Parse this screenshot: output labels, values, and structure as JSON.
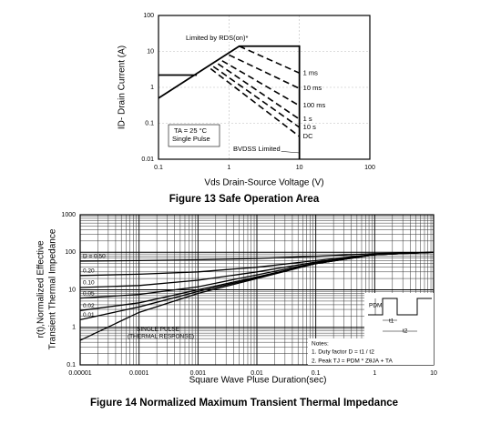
{
  "chart_data": [
    {
      "type": "line",
      "title": "Figure 13    Safe Operation Area",
      "x_label": "Vds Drain-Source Voltage (V)",
      "y_label": "ID- Drain Current (A)",
      "xlog": true,
      "ylog": true,
      "grid": true,
      "minor_grid": false,
      "xlim": [
        0.1,
        100
      ],
      "ylim": [
        0.01,
        100
      ],
      "xticks": [
        0.1,
        1,
        10,
        100
      ],
      "yticks": [
        0.01,
        0.1,
        1,
        10,
        100
      ],
      "series": [
        {
          "color": "#000000",
          "dashed": false,
          "x": [
            0.1,
            1.4,
            10,
            10
          ],
          "values": [
            0.5,
            14,
            14,
            0.01
          ]
        },
        {
          "color": "#000000",
          "dashed": false,
          "x": [
            0.1,
            0.35
          ],
          "values": [
            2.2,
            2.2
          ]
        },
        {
          "name": "1 ms",
          "color": "#000000",
          "dashed": true,
          "x": [
            1.4,
            10
          ],
          "values": [
            14,
            2.5
          ]
        },
        {
          "name": "10 ms",
          "color": "#000000",
          "dashed": true,
          "x": [
            1,
            10
          ],
          "values": [
            8,
            0.93
          ]
        },
        {
          "name": "100 ms",
          "color": "#000000",
          "dashed": true,
          "x": [
            0.8,
            10
          ],
          "values": [
            5.5,
            0.31
          ]
        },
        {
          "name": "1 s",
          "color": "#000000",
          "dashed": true,
          "x": [
            0.7,
            10
          ],
          "values": [
            4.5,
            0.13
          ]
        },
        {
          "name": "10 s",
          "color": "#000000",
          "dashed": true,
          "x": [
            0.6,
            10
          ],
          "values": [
            3.8,
            0.077
          ]
        },
        {
          "name": "DC",
          "color": "#000000",
          "dashed": true,
          "x": [
            0.55,
            10
          ],
          "values": [
            3.3,
            0.043
          ]
        }
      ],
      "annotations": [
        "Limited by RDS(on)*",
        "TA = 25 °C",
        "Single Pulse",
        "BVDSS Limited"
      ]
    },
    {
      "type": "line",
      "title": "Figure 14 Normalized Maximum Transient Thermal Impedance",
      "x_label": "Square Wave Pluse Duration(sec)",
      "y_label": [
        "r(t),Normalized Effective",
        "Transient Thermal Impedance"
      ],
      "xlog": true,
      "ylog": true,
      "grid": true,
      "minor_grid": true,
      "xlim": [
        1e-05,
        10
      ],
      "ylim": [
        0.1,
        1000
      ],
      "xticks": [
        1e-05,
        0.0001,
        0.001,
        0.01,
        0.1,
        1,
        10
      ],
      "yticks": [
        0.1,
        1,
        10,
        100,
        1000
      ],
      "x": [
        1e-05,
        0.0001,
        0.001,
        0.01,
        0.1,
        1,
        10
      ],
      "series": [
        {
          "name": "D = 0.50",
          "color": "#000000",
          "values": [
            58,
            60,
            63,
            68,
            78,
            92,
            100
          ]
        },
        {
          "name": "0.20",
          "color": "#000000",
          "values": [
            24,
            26,
            30,
            40,
            60,
            88,
            100
          ]
        },
        {
          "name": "0.10",
          "color": "#000000",
          "values": [
            11.5,
            13,
            18,
            30,
            55,
            87,
            100
          ]
        },
        {
          "name": "0.05",
          "color": "#000000",
          "values": [
            6,
            7.5,
            12,
            25,
            52,
            86,
            100
          ]
        },
        {
          "name": "0.02",
          "color": "#000000",
          "values": [
            2.8,
            4.5,
            10,
            22,
            50,
            86,
            100
          ]
        },
        {
          "name": "0.01",
          "color": "#000000",
          "values": [
            1.6,
            3.5,
            9,
            21,
            50,
            86,
            100
          ]
        },
        {
          "name": "SINGLE PULSE",
          "color": "#000000",
          "values": [
            0.45,
            2.5,
            8,
            20,
            50,
            86,
            100
          ]
        }
      ],
      "annotations": [
        "(THERMAL RESPONSE)",
        "Notes:",
        "1. Duty factor D = t1 / t2",
        "2. Peak TJ = PDM * ZθJA + TA",
        "PDM",
        "t1",
        "t2"
      ]
    }
  ]
}
